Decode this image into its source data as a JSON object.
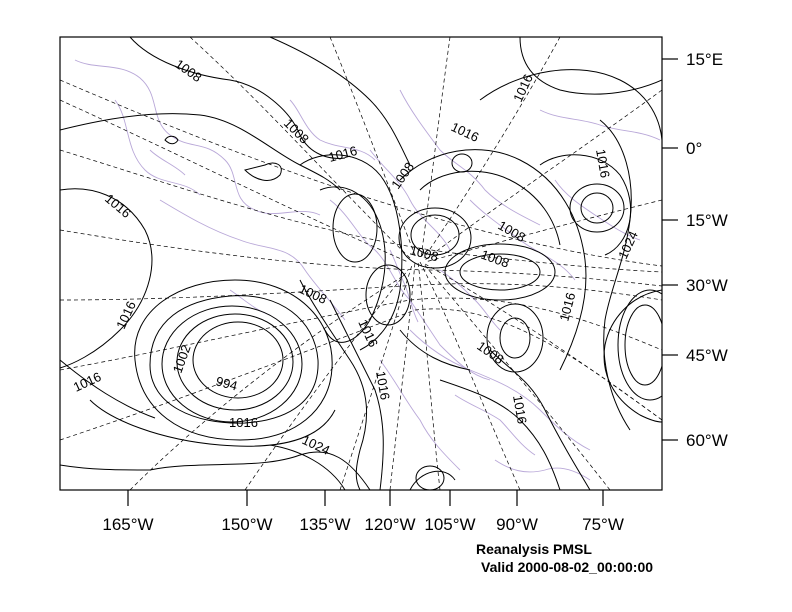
{
  "map": {
    "title": "Reanalysis PMSL",
    "valid": "Valid 2000-08-02_00:00:00",
    "colors": {
      "contour": "#000000",
      "coastline": "#b9a8d8",
      "grid": "#000000"
    },
    "bottom_lon_labels": [
      "165°W",
      "150°W",
      "135°W",
      "120°W",
      "105°W",
      "90°W",
      "75°W"
    ],
    "right_lat_labels": [
      "15°E",
      "0°",
      "15°W",
      "30°W",
      "45°W",
      "60°W"
    ],
    "contour_labels": [
      "1008",
      "1008",
      "1016",
      "1016",
      "1016",
      "1008",
      "1016",
      "1016",
      "1008",
      "1008",
      "1008",
      "1008",
      "1024",
      "1016",
      "1016",
      "1016",
      "1016",
      "1002",
      "994",
      "1016",
      "1024",
      "1016",
      "1008",
      "1016"
    ]
  }
}
